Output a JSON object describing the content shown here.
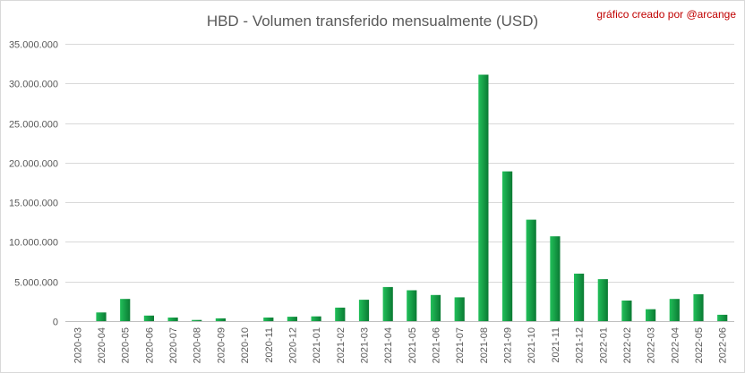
{
  "chart_data": {
    "type": "bar",
    "title": "HBD - Volumen transferido mensualmente (USD)",
    "annotation": "gráfico creado por @arcange",
    "ylim": [
      0,
      35000000
    ],
    "yticks": [
      0,
      5000000,
      10000000,
      15000000,
      20000000,
      25000000,
      30000000,
      35000000
    ],
    "ytick_labels": [
      "0",
      "5.000.000",
      "10.000.000",
      "15.000.000",
      "20.000.000",
      "25.000.000",
      "30.000.000",
      "35.000.000"
    ],
    "grid": true,
    "legend": "none",
    "bar_color_light": "#22c05a",
    "bar_color_dark": "#0a7a33",
    "categories": [
      "2020-03",
      "2020-04",
      "2020-05",
      "2020-06",
      "2020-07",
      "2020-08",
      "2020-09",
      "2020-10",
      "2020-11",
      "2020-12",
      "2021-01",
      "2021-02",
      "2021-03",
      "2021-04",
      "2021-05",
      "2021-06",
      "2021-07",
      "2021-08",
      "2021-09",
      "2021-10",
      "2021-11",
      "2021-12",
      "2022-01",
      "2022-02",
      "2022-03",
      "2022-04",
      "2022-05",
      "2022-06"
    ],
    "values": [
      0,
      1100000,
      2800000,
      700000,
      450000,
      150000,
      350000,
      0,
      450000,
      550000,
      600000,
      1700000,
      2700000,
      4300000,
      3900000,
      3300000,
      3000000,
      31100000,
      18900000,
      12800000,
      10700000,
      6000000,
      5300000,
      2600000,
      1500000,
      2800000,
      3400000,
      800000
    ]
  }
}
